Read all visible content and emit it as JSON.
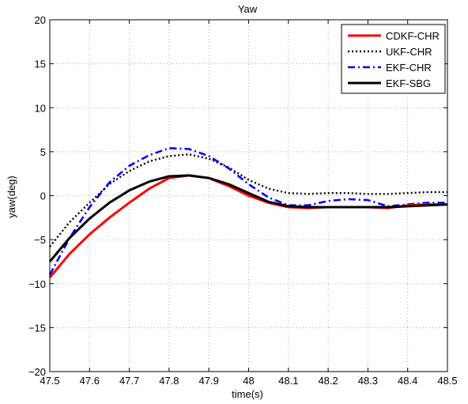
{
  "chart_data": {
    "type": "line",
    "title": "Yaw",
    "xlabel": "time(s)",
    "ylabel": "yaw(deg)",
    "xlim": [
      47.5,
      48.5
    ],
    "ylim": [
      -20,
      20
    ],
    "xticks": [
      "47.5",
      "47.6",
      "47.7",
      "47.8",
      "47.9",
      "48",
      "48.1",
      "48.2",
      "48.3",
      "48.4",
      "48.5"
    ],
    "yticks": [
      "20",
      "15",
      "10",
      "5",
      "0",
      "−5",
      "−10",
      "−15",
      "−20"
    ],
    "grid": true,
    "legend_position": "top-right",
    "series": [
      {
        "name": "CDKF-CHR",
        "color": "#ff0000",
        "style": "solid",
        "x": [
          47.5,
          47.55,
          47.6,
          47.65,
          47.7,
          47.75,
          47.8,
          47.85,
          47.9,
          47.95,
          48.0,
          48.05,
          48.1,
          48.15,
          48.2,
          48.25,
          48.3,
          48.35,
          48.4,
          48.45,
          48.5
        ],
        "y": [
          -9.3,
          -6.6,
          -4.4,
          -2.5,
          -0.8,
          0.8,
          2.0,
          2.3,
          2.0,
          1.1,
          0.0,
          -0.8,
          -1.3,
          -1.4,
          -1.3,
          -1.3,
          -1.3,
          -1.4,
          -1.1,
          -1.0,
          -1.0
        ]
      },
      {
        "name": "UKF-CHR",
        "color": "#000000",
        "style": "dotted",
        "x": [
          47.5,
          47.55,
          47.6,
          47.65,
          47.7,
          47.75,
          47.8,
          47.85,
          47.9,
          47.95,
          48.0,
          48.05,
          48.1,
          48.15,
          48.2,
          48.25,
          48.3,
          48.35,
          48.4,
          48.45,
          48.5
        ],
        "y": [
          -5.8,
          -3.0,
          -0.8,
          1.3,
          2.8,
          3.9,
          4.5,
          4.7,
          4.2,
          3.2,
          1.8,
          0.8,
          0.3,
          0.2,
          0.3,
          0.3,
          0.2,
          0.2,
          0.3,
          0.4,
          0.4
        ]
      },
      {
        "name": "EKF-CHR",
        "color": "#0000ff",
        "style": "dashdot",
        "x": [
          47.5,
          47.55,
          47.6,
          47.65,
          47.7,
          47.75,
          47.8,
          47.85,
          47.9,
          47.95,
          48.0,
          48.05,
          48.1,
          48.15,
          48.2,
          48.25,
          48.3,
          48.35,
          48.4,
          48.45,
          48.5
        ],
        "y": [
          -9.0,
          -4.8,
          -1.3,
          1.5,
          3.4,
          4.6,
          5.4,
          5.3,
          4.5,
          3.1,
          1.3,
          -0.2,
          -1.1,
          -1.1,
          -0.6,
          -0.4,
          -0.5,
          -1.2,
          -1.0,
          -0.8,
          -0.8
        ]
      },
      {
        "name": "EKF-SBG",
        "color": "#000000",
        "style": "solid",
        "x": [
          47.5,
          47.55,
          47.6,
          47.65,
          47.7,
          47.75,
          47.8,
          47.85,
          47.9,
          47.95,
          48.0,
          48.05,
          48.1,
          48.15,
          48.2,
          48.25,
          48.3,
          48.35,
          48.4,
          48.45,
          48.5
        ],
        "y": [
          -7.5,
          -4.8,
          -2.6,
          -0.8,
          0.6,
          1.6,
          2.2,
          2.3,
          2.0,
          1.3,
          0.3,
          -0.7,
          -1.2,
          -1.3,
          -1.3,
          -1.3,
          -1.3,
          -1.3,
          -1.2,
          -1.1,
          -1.0
        ]
      }
    ]
  }
}
